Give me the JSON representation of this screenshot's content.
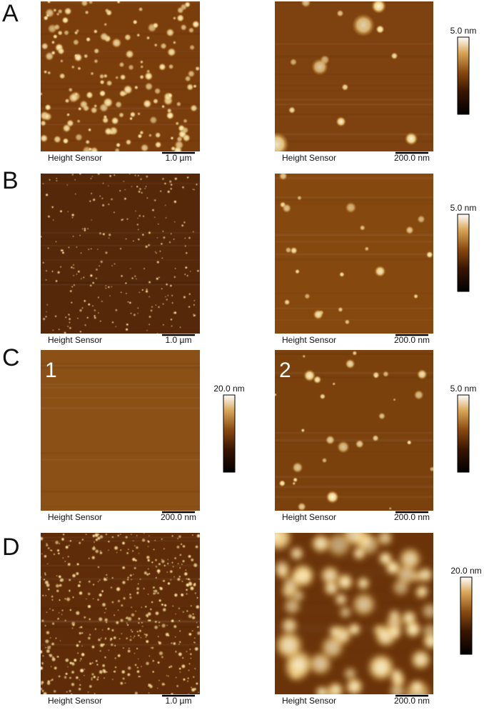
{
  "panels": [
    {
      "label": "A",
      "images": [
        {
          "caption": "Height Sensor",
          "scale": "1.0 µm"
        },
        {
          "caption": "Height Sensor",
          "scale": "200.0 nm"
        }
      ],
      "colorbars": [
        "5.0 nm"
      ]
    },
    {
      "label": "B",
      "images": [
        {
          "caption": "Height Sensor",
          "scale": "1.0 µm"
        },
        {
          "caption": "Height Sensor",
          "scale": "200.0 nm"
        }
      ],
      "colorbars": [
        "5.0 nm"
      ]
    },
    {
      "label": "C",
      "images": [
        {
          "number": "1",
          "caption": "Height Sensor",
          "scale": "200.0 nm"
        },
        {
          "number": "2",
          "caption": "Height Sensor",
          "scale": "200.0 nm"
        }
      ],
      "colorbars": [
        "20.0 nm",
        "5.0 nm"
      ]
    },
    {
      "label": "D",
      "images": [
        {
          "caption": "Height Sensor",
          "scale": "1.0 µm"
        },
        {
          "caption": "Height Sensor",
          "scale": "200.0 nm"
        }
      ],
      "colorbars": [
        "20.0 nm"
      ]
    }
  ]
}
